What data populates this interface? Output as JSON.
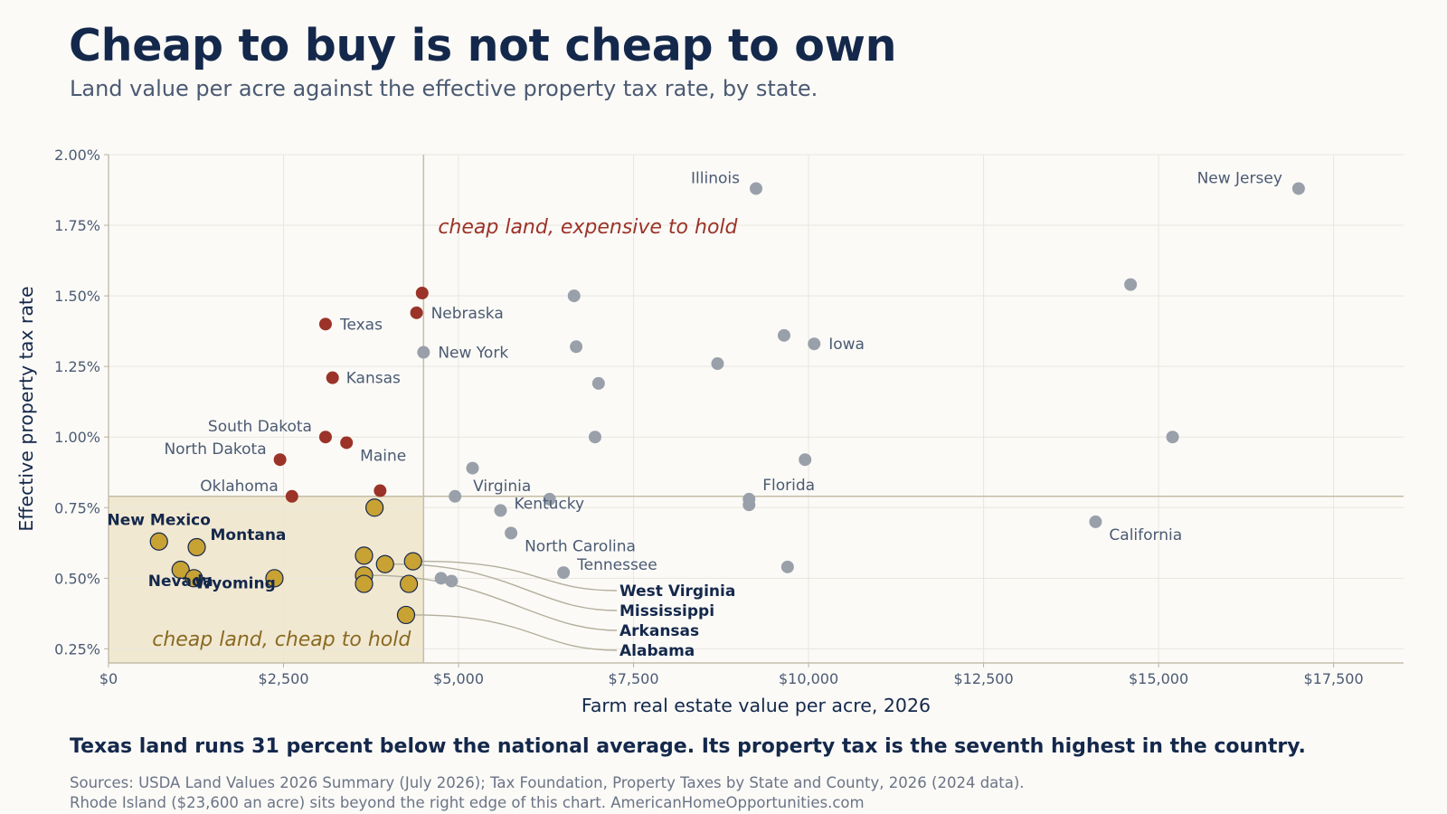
{
  "header": {
    "title": "Cheap to buy is not cheap to own",
    "subtitle": "Land value per acre against the effective property tax rate, by state."
  },
  "footer": {
    "takeaway": "Texas land runs 31 percent below the national average. Its property tax is the seventh highest in the country.",
    "source_line1": "Sources: USDA Land Values 2026 Summary (July 2026); Tax Foundation, Property Taxes by State and County, 2026 (2024 data).",
    "source_line2": "Rhode Island ($23,600 an acre) sits beyond the right edge of this chart.   AmericanHomeOpportunities.com"
  },
  "colors": {
    "cheap_expensive": "#9b3328",
    "cheap_cheap": "#c9a234",
    "other": "#9aa0aa",
    "shade": "#f1e8d2",
    "threshold_line": "#c4bda6",
    "quadrant_cheap_expensive_text": "#9b3328",
    "quadrant_cheap_cheap_text": "#8a6a22",
    "label_text": "#4b5a72",
    "bold_label_text": "#14284b"
  },
  "chart_data": {
    "type": "scatter",
    "xlabel": "Farm real estate value per acre, 2026",
    "ylabel": "Effective property tax rate",
    "xlim": [
      0,
      18500
    ],
    "ylim": [
      0.2,
      2.0
    ],
    "x_ticks": [
      0,
      2500,
      5000,
      7500,
      10000,
      12500,
      15000,
      17500
    ],
    "x_tick_labels": [
      "$0",
      "$2,500",
      "$5,000",
      "$7,500",
      "$10,000",
      "$12,500",
      "$15,000",
      "$17,500"
    ],
    "y_ticks": [
      0.25,
      0.5,
      0.75,
      1.0,
      1.25,
      1.5,
      1.75,
      2.0
    ],
    "y_tick_labels": [
      "0.25%",
      "0.50%",
      "0.75%",
      "1.00%",
      "1.25%",
      "1.50%",
      "1.75%",
      "2.00%"
    ],
    "grid": true,
    "threshold_x": 4500,
    "threshold_y": 0.79,
    "quadrant_labels": {
      "cheap_expensive": "cheap land, expensive to hold",
      "cheap_cheap": "cheap land, cheap to hold"
    },
    "points": [
      {
        "x": 3100,
        "y": 1.4,
        "group": "cheap_expensive",
        "label": "Texas"
      },
      {
        "x": 4400,
        "y": 1.44,
        "group": "cheap_expensive",
        "label": "Nebraska"
      },
      {
        "x": 4480,
        "y": 1.51,
        "group": "cheap_expensive",
        "label": ""
      },
      {
        "x": 3200,
        "y": 1.21,
        "group": "cheap_expensive",
        "label": "Kansas"
      },
      {
        "x": 3100,
        "y": 1.0,
        "group": "cheap_expensive",
        "label": "South Dakota"
      },
      {
        "x": 3400,
        "y": 0.98,
        "group": "cheap_expensive",
        "label": "Maine"
      },
      {
        "x": 2450,
        "y": 0.92,
        "group": "cheap_expensive",
        "label": "North Dakota"
      },
      {
        "x": 3880,
        "y": 0.81,
        "group": "cheap_expensive",
        "label": ""
      },
      {
        "x": 2620,
        "y": 0.79,
        "group": "cheap_expensive",
        "label": "Oklahoma"
      },
      {
        "x": 720,
        "y": 0.63,
        "group": "cheap_cheap",
        "label": "New Mexico"
      },
      {
        "x": 1260,
        "y": 0.61,
        "group": "cheap_cheap",
        "label": "Montana"
      },
      {
        "x": 1030,
        "y": 0.53,
        "group": "cheap_cheap",
        "label": "Nevada"
      },
      {
        "x": 1220,
        "y": 0.5,
        "group": "cheap_cheap",
        "label": ""
      },
      {
        "x": 2370,
        "y": 0.5,
        "group": "cheap_cheap",
        "label": "Wyoming"
      },
      {
        "x": 3800,
        "y": 0.75,
        "group": "cheap_cheap",
        "label": ""
      },
      {
        "x": 3650,
        "y": 0.58,
        "group": "cheap_cheap",
        "label": ""
      },
      {
        "x": 3950,
        "y": 0.55,
        "group": "cheap_cheap",
        "label": "Mississippi"
      },
      {
        "x": 4350,
        "y": 0.56,
        "group": "cheap_cheap",
        "label": "West Virginia"
      },
      {
        "x": 3650,
        "y": 0.51,
        "group": "cheap_cheap",
        "label": "Arkansas"
      },
      {
        "x": 3650,
        "y": 0.48,
        "group": "cheap_cheap",
        "label": ""
      },
      {
        "x": 4290,
        "y": 0.48,
        "group": "cheap_cheap",
        "label": ""
      },
      {
        "x": 4250,
        "y": 0.37,
        "group": "cheap_cheap",
        "label": "Alabama"
      },
      {
        "x": 9250,
        "y": 1.88,
        "group": "other",
        "label": "Illinois"
      },
      {
        "x": 17000,
        "y": 1.88,
        "group": "other",
        "label": "New Jersey"
      },
      {
        "x": 14600,
        "y": 1.54,
        "group": "other",
        "label": ""
      },
      {
        "x": 6650,
        "y": 1.5,
        "group": "other",
        "label": ""
      },
      {
        "x": 4500,
        "y": 1.3,
        "group": "other",
        "label": "New York"
      },
      {
        "x": 6680,
        "y": 1.32,
        "group": "other",
        "label": ""
      },
      {
        "x": 9650,
        "y": 1.36,
        "group": "other",
        "label": ""
      },
      {
        "x": 10080,
        "y": 1.33,
        "group": "other",
        "label": "Iowa"
      },
      {
        "x": 8700,
        "y": 1.26,
        "group": "other",
        "label": ""
      },
      {
        "x": 7000,
        "y": 1.19,
        "group": "other",
        "label": ""
      },
      {
        "x": 6950,
        "y": 1.0,
        "group": "other",
        "label": ""
      },
      {
        "x": 15200,
        "y": 1.0,
        "group": "other",
        "label": ""
      },
      {
        "x": 9950,
        "y": 0.92,
        "group": "other",
        "label": ""
      },
      {
        "x": 5200,
        "y": 0.89,
        "group": "other",
        "label": ""
      },
      {
        "x": 4950,
        "y": 0.79,
        "group": "other",
        "label": "Virginia"
      },
      {
        "x": 6300,
        "y": 0.78,
        "group": "other",
        "label": ""
      },
      {
        "x": 9150,
        "y": 0.78,
        "group": "other",
        "label": "Florida"
      },
      {
        "x": 9150,
        "y": 0.76,
        "group": "other",
        "label": ""
      },
      {
        "x": 5600,
        "y": 0.74,
        "group": "other",
        "label": "Kentucky"
      },
      {
        "x": 14100,
        "y": 0.7,
        "group": "other",
        "label": "California"
      },
      {
        "x": 5750,
        "y": 0.66,
        "group": "other",
        "label": "North Carolina"
      },
      {
        "x": 9700,
        "y": 0.54,
        "group": "other",
        "label": ""
      },
      {
        "x": 6500,
        "y": 0.52,
        "group": "other",
        "label": "Tennessee"
      },
      {
        "x": 4750,
        "y": 0.5,
        "group": "other",
        "label": ""
      },
      {
        "x": 4900,
        "y": 0.49,
        "group": "other",
        "label": ""
      }
    ]
  }
}
